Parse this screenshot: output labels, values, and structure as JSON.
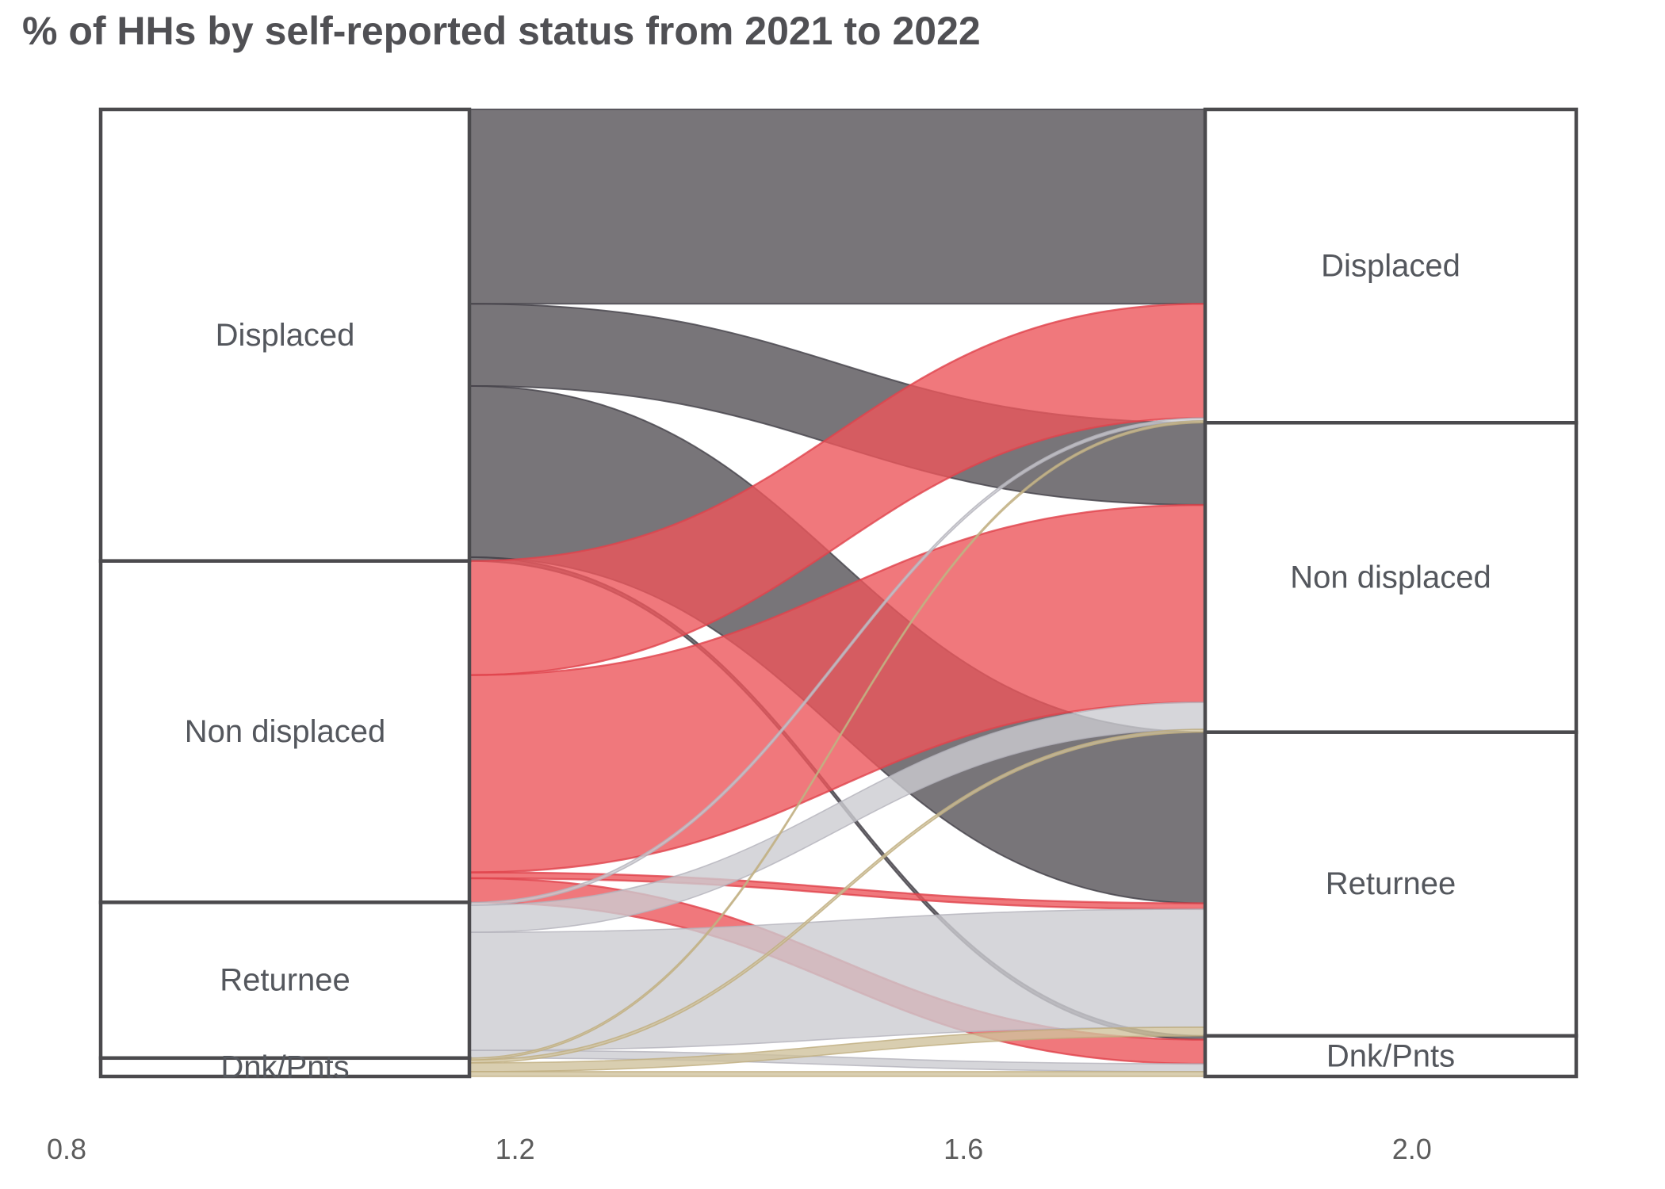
{
  "title": "% of HHs by self-reported status from 2021 to 2022",
  "axis": {
    "ticks": [
      "0.8",
      "1.2",
      "1.6",
      "2.0"
    ]
  },
  "colors": {
    "title_text": "#505054",
    "stratum_border": "#4b4a4d",
    "stratum_fill": "#ffffff",
    "label_text": "#54575d",
    "axis_text": "#5c5c5c",
    "flow_displaced": "#565358",
    "flow_non_displaced": "#ec565b",
    "flow_returnee": "#ccccd1",
    "flow_dnk_pnts": "#d0c29c"
  },
  "chart_data": {
    "type": "alluvial",
    "title": "% of HHs by self-reported status from 2021 to 2022",
    "units": "% of HHs",
    "years": [
      "2021",
      "2022"
    ],
    "categories": [
      "Displaced",
      "Non displaced",
      "Returnee",
      "Dnk/Pnts"
    ],
    "x_ticks": [
      0.8,
      1.2,
      1.6,
      2.0
    ],
    "legend_position": "none",
    "grid": false,
    "totals_2021": {
      "Displaced": 46.7,
      "Non displaced": 35.3,
      "Returnee": 16.1,
      "Dnk/Pnts": 1.9
    },
    "totals_2022": {
      "Displaced": 32.4,
      "Non displaced": 32.0,
      "Returnee": 31.4,
      "Dnk/Pnts": 4.2
    },
    "flow_colors": {
      "Displaced": {
        "fill": "#565358",
        "stroke": "#45424a",
        "stroke_width": 2.0
      },
      "Non displaced": {
        "fill": "#ec565b",
        "stroke": "#e0434c",
        "stroke_width": 2.4
      },
      "Returnee": {
        "fill": "#ccccd1",
        "stroke": "#b4b3bc",
        "stroke_width": 1.6
      },
      "Dnk/Pnts": {
        "fill": "#d0c29c",
        "stroke": "#bfae7f",
        "stroke_width": 1.6
      }
    },
    "flows": [
      {
        "from": "Displaced",
        "to": "Displaced",
        "value": 20.1
      },
      {
        "from": "Displaced",
        "to": "Non displaced",
        "value": 8.5
      },
      {
        "from": "Displaced",
        "to": "Returnee",
        "value": 17.7
      },
      {
        "from": "Displaced",
        "to": "Dnk/Pnts",
        "value": 0.4
      },
      {
        "from": "Non displaced",
        "to": "Displaced",
        "value": 11.8
      },
      {
        "from": "Non displaced",
        "to": "Non displaced",
        "value": 20.4
      },
      {
        "from": "Non displaced",
        "to": "Returnee",
        "value": 0.6
      },
      {
        "from": "Non displaced",
        "to": "Dnk/Pnts",
        "value": 2.5
      },
      {
        "from": "Returnee",
        "to": "Displaced",
        "value": 0.3
      },
      {
        "from": "Returnee",
        "to": "Non displaced",
        "value": 2.8
      },
      {
        "from": "Returnee",
        "to": "Returnee",
        "value": 12.2
      },
      {
        "from": "Returnee",
        "to": "Dnk/Pnts",
        "value": 0.8
      },
      {
        "from": "Dnk/Pnts",
        "to": "Displaced",
        "value": 0.2
      },
      {
        "from": "Dnk/Pnts",
        "to": "Non displaced",
        "value": 0.3
      },
      {
        "from": "Dnk/Pnts",
        "to": "Returnee",
        "value": 0.9
      },
      {
        "from": "Dnk/Pnts",
        "to": "Dnk/Pnts",
        "value": 0.5
      }
    ]
  }
}
